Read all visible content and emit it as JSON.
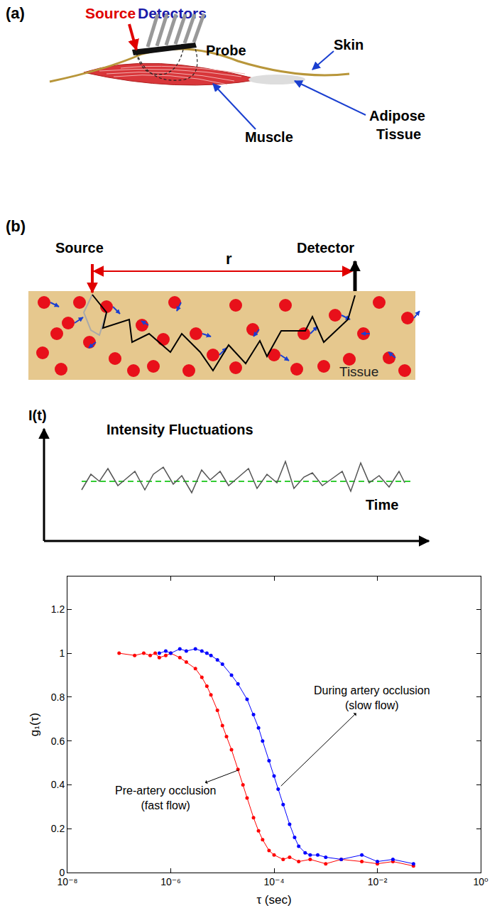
{
  "diagram": {
    "panel_a": {
      "label": "(a)",
      "source": "Source",
      "detectors": "Detectors",
      "probe": "Probe",
      "skin": "Skin",
      "muscle": "Muscle",
      "adipose_tissue": [
        "Adipose",
        "Tissue"
      ]
    },
    "panel_b": {
      "label": "(b)",
      "source": "Source",
      "detector": "Detector",
      "distance": "r",
      "medium": "Tissue",
      "intensity_axis": "I(t)",
      "caption": "Intensity Fluctuations",
      "time_axis": "Time"
    }
  },
  "chart_data": {
    "type": "line",
    "xlabel": "τ (sec)",
    "ylabel": "g₁(τ)",
    "log": "x",
    "grid": false,
    "xlim": [
      1e-08,
      1
    ],
    "xticks": [
      {
        "value": 1e-08,
        "label": "10⁻⁸"
      },
      {
        "value": 1e-06,
        "label": "10⁻⁶"
      },
      {
        "value": 0.0001,
        "label": "10⁻⁴"
      },
      {
        "value": 0.01,
        "label": "10⁻²"
      },
      {
        "value": 1,
        "label": "10⁰"
      }
    ],
    "ylim": [
      0,
      1.35
    ],
    "yticks": [
      0,
      0.2,
      0.4,
      0.6,
      0.8,
      1,
      1.2
    ],
    "series": [
      {
        "name": "Pre-artery occlusion (fast flow)",
        "color": "#ff0000",
        "marker": "circle",
        "line_style": "solid",
        "x": [
          1e-07,
          2e-07,
          3e-07,
          4e-07,
          5e-07,
          6e-07,
          8e-07,
          1e-06,
          1.5e-06,
          2e-06,
          3e-06,
          4e-06,
          5e-06,
          6e-06,
          8e-06,
          1e-05,
          1.2e-05,
          1.5e-05,
          2e-05,
          2.5e-05,
          3e-05,
          4e-05,
          5e-05,
          6e-05,
          8e-05,
          0.0001,
          0.00015,
          0.0002,
          0.0003,
          0.0005,
          0.001,
          0.002,
          0.005,
          0.01,
          0.02,
          0.05
        ],
        "values": [
          1.0,
          0.99,
          1.0,
          0.99,
          1.0,
          0.98,
          0.99,
          1.0,
          0.98,
          0.96,
          0.93,
          0.89,
          0.85,
          0.81,
          0.74,
          0.67,
          0.62,
          0.56,
          0.47,
          0.4,
          0.34,
          0.25,
          0.19,
          0.15,
          0.1,
          0.08,
          0.06,
          0.07,
          0.05,
          0.06,
          0.04,
          0.06,
          0.05,
          0.04,
          0.05,
          0.03
        ]
      },
      {
        "name": "During artery occlusion (slow flow)",
        "color": "#0000ff",
        "marker": "circle",
        "line_style": "solid",
        "x": [
          6e-07,
          8e-07,
          1e-06,
          1.5e-06,
          2e-06,
          3e-06,
          4e-06,
          5e-06,
          6e-06,
          8e-06,
          1e-05,
          1.5e-05,
          2e-05,
          3e-05,
          4e-05,
          5e-05,
          6e-05,
          8e-05,
          0.0001,
          0.00012,
          0.00015,
          0.0002,
          0.00025,
          0.0003,
          0.0004,
          0.0005,
          0.0007,
          0.001,
          0.002,
          0.005,
          0.01,
          0.02,
          0.05
        ],
        "values": [
          1.0,
          1.01,
          1.0,
          1.02,
          1.01,
          1.02,
          1.01,
          1.0,
          0.99,
          0.97,
          0.95,
          0.9,
          0.86,
          0.79,
          0.72,
          0.66,
          0.6,
          0.51,
          0.44,
          0.38,
          0.31,
          0.22,
          0.16,
          0.12,
          0.09,
          0.08,
          0.08,
          0.07,
          0.06,
          0.08,
          0.05,
          0.06,
          0.04
        ]
      }
    ]
  }
}
